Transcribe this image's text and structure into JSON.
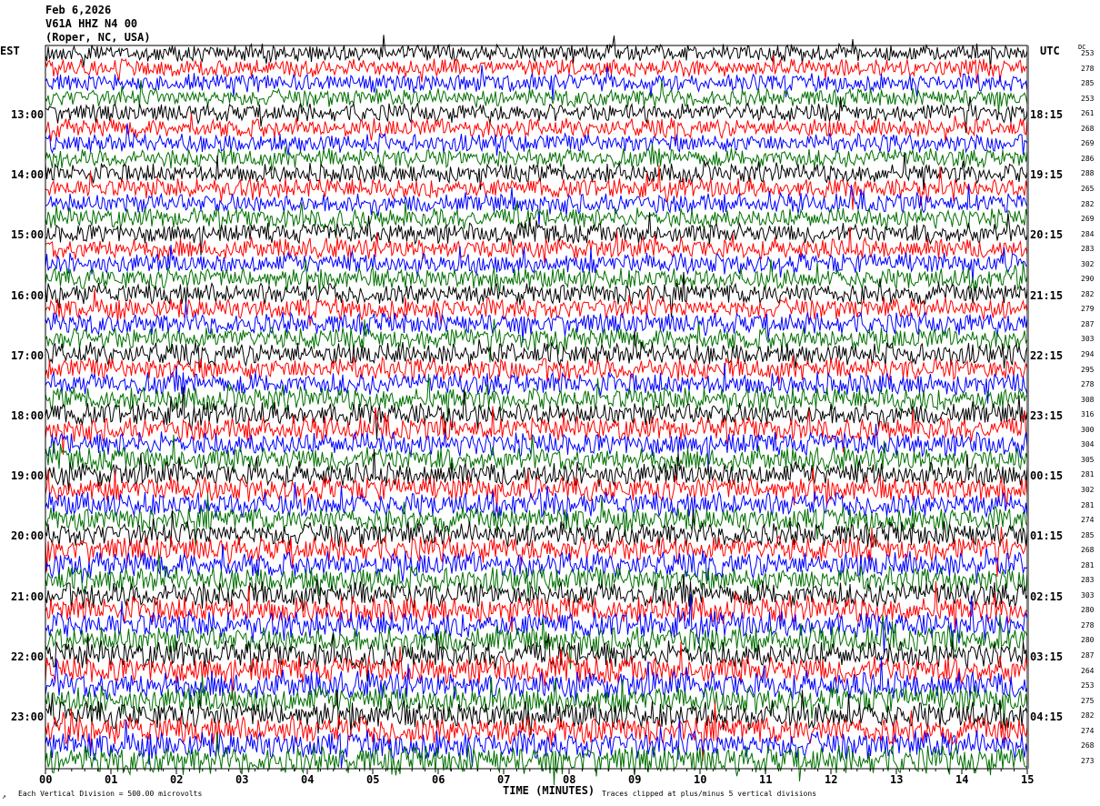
{
  "header": {
    "date": "Feb 6,2026",
    "station": "V61A HHZ N4 00",
    "location": "(Roper, NC, USA)"
  },
  "left_axis": {
    "title": "EST",
    "labels": [
      "13:00",
      "14:00",
      "15:00",
      "16:00",
      "17:00",
      "18:00",
      "19:00",
      "20:00",
      "21:00",
      "22:00",
      "23:00"
    ]
  },
  "right_axis": {
    "title": "UTC",
    "labels": [
      "18:15",
      "19:15",
      "20:15",
      "21:15",
      "22:15",
      "23:15",
      "00:15",
      "01:15",
      "02:15",
      "03:15",
      "04:15"
    ]
  },
  "dc_column": {
    "title": "DC",
    "values": [
      "253",
      "278",
      "285",
      "253",
      "261",
      "268",
      "269",
      "286",
      "288",
      "265",
      "282",
      "269",
      "284",
      "283",
      "302",
      "290",
      "282",
      "279",
      "287",
      "303",
      "294",
      "295",
      "278",
      "308",
      "316",
      "300",
      "304",
      "305",
      "281",
      "302",
      "281",
      "274",
      "285",
      "268",
      "281",
      "283",
      "303",
      "280",
      "278",
      "280",
      "287",
      "264",
      "253",
      "275",
      "282",
      "274",
      "268",
      "273"
    ]
  },
  "footer": {
    "corner_mark": "↗",
    "scale_note": "Each Vertical Division =  500.00 microvolts",
    "clip_note": "Traces clipped at plus/minus 5 vertical divisions"
  },
  "chart_data": {
    "type": "line",
    "subtype": "helicorder",
    "xlabel": "TIME (MINUTES)",
    "x_ticks": [
      "00",
      "01",
      "02",
      "03",
      "04",
      "05",
      "06",
      "07",
      "08",
      "09",
      "10",
      "11",
      "12",
      "13",
      "14",
      "15"
    ],
    "xlim": [
      0,
      15
    ],
    "rows_per_hour": 4,
    "row_count": 48,
    "trace_colors": [
      "#000000",
      "#ff0000",
      "#0000ff",
      "#007000"
    ],
    "grid": false
  }
}
